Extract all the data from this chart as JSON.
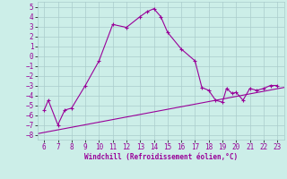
{
  "xlabel": "Windchill (Refroidissement éolien,°C)",
  "bg_color": "#cceee8",
  "grid_color": "#aacccc",
  "line_color": "#990099",
  "marker": "+",
  "xlim": [
    5.5,
    23.5
  ],
  "ylim": [
    -8.5,
    5.5
  ],
  "xticks": [
    6,
    7,
    8,
    9,
    10,
    11,
    12,
    13,
    14,
    15,
    16,
    17,
    18,
    19,
    20,
    21,
    22,
    23
  ],
  "yticks": [
    -8,
    -7,
    -6,
    -5,
    -4,
    -3,
    -2,
    -1,
    0,
    1,
    2,
    3,
    4,
    5
  ],
  "curve_x": [
    6,
    6.3,
    7,
    7.5,
    8,
    9,
    10,
    11,
    12,
    13,
    13.5,
    14,
    14.5,
    15,
    16,
    17,
    17.5,
    18,
    18.5,
    19,
    19.3,
    19.7,
    20,
    20.5,
    21,
    21.5,
    22,
    22.5,
    23
  ],
  "curve_y": [
    -5.5,
    -4.5,
    -7.0,
    -5.5,
    -5.3,
    -3.0,
    -0.5,
    3.2,
    2.9,
    4.0,
    4.5,
    4.8,
    4.0,
    2.4,
    0.7,
    -0.5,
    -3.2,
    -3.5,
    -4.5,
    -4.7,
    -3.3,
    -3.8,
    -3.7,
    -4.5,
    -3.3,
    -3.5,
    -3.3,
    -3.0,
    -3.0
  ],
  "line2_x": [
    5.5,
    23.5
  ],
  "line2_y": [
    -7.9,
    -3.2
  ]
}
